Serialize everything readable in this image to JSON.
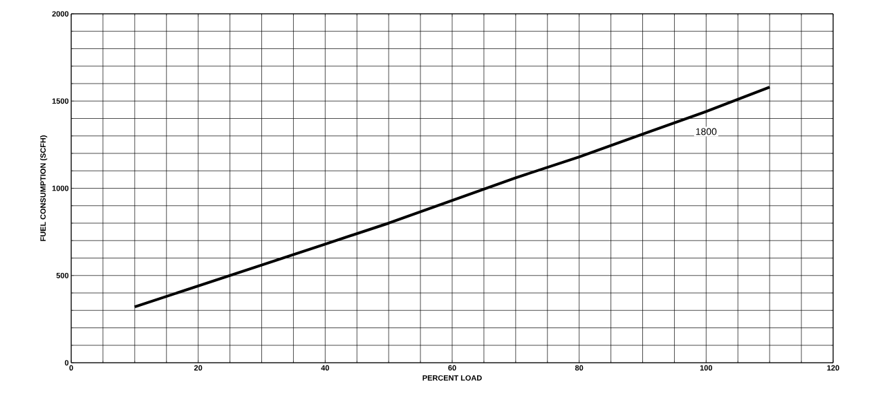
{
  "chart_data": {
    "type": "line",
    "xlabel": "PERCENT LOAD",
    "ylabel": "FUEL CONSUMPTION (SCFH)",
    "xlim": [
      0,
      120
    ],
    "xticks": [
      0,
      20,
      40,
      60,
      80,
      100,
      120
    ],
    "ylim": [
      0,
      2000
    ],
    "yticks": [
      0,
      500,
      1000,
      1500,
      2000
    ],
    "grid": true,
    "x": [
      10,
      20,
      30,
      40,
      50,
      60,
      70,
      80,
      90,
      100,
      110
    ],
    "series": [
      {
        "name": "1800",
        "color": "#000000",
        "values": [
          320,
          440,
          560,
          680,
          800,
          930,
          1060,
          1180,
          1310,
          1440,
          1580
        ]
      }
    ]
  }
}
